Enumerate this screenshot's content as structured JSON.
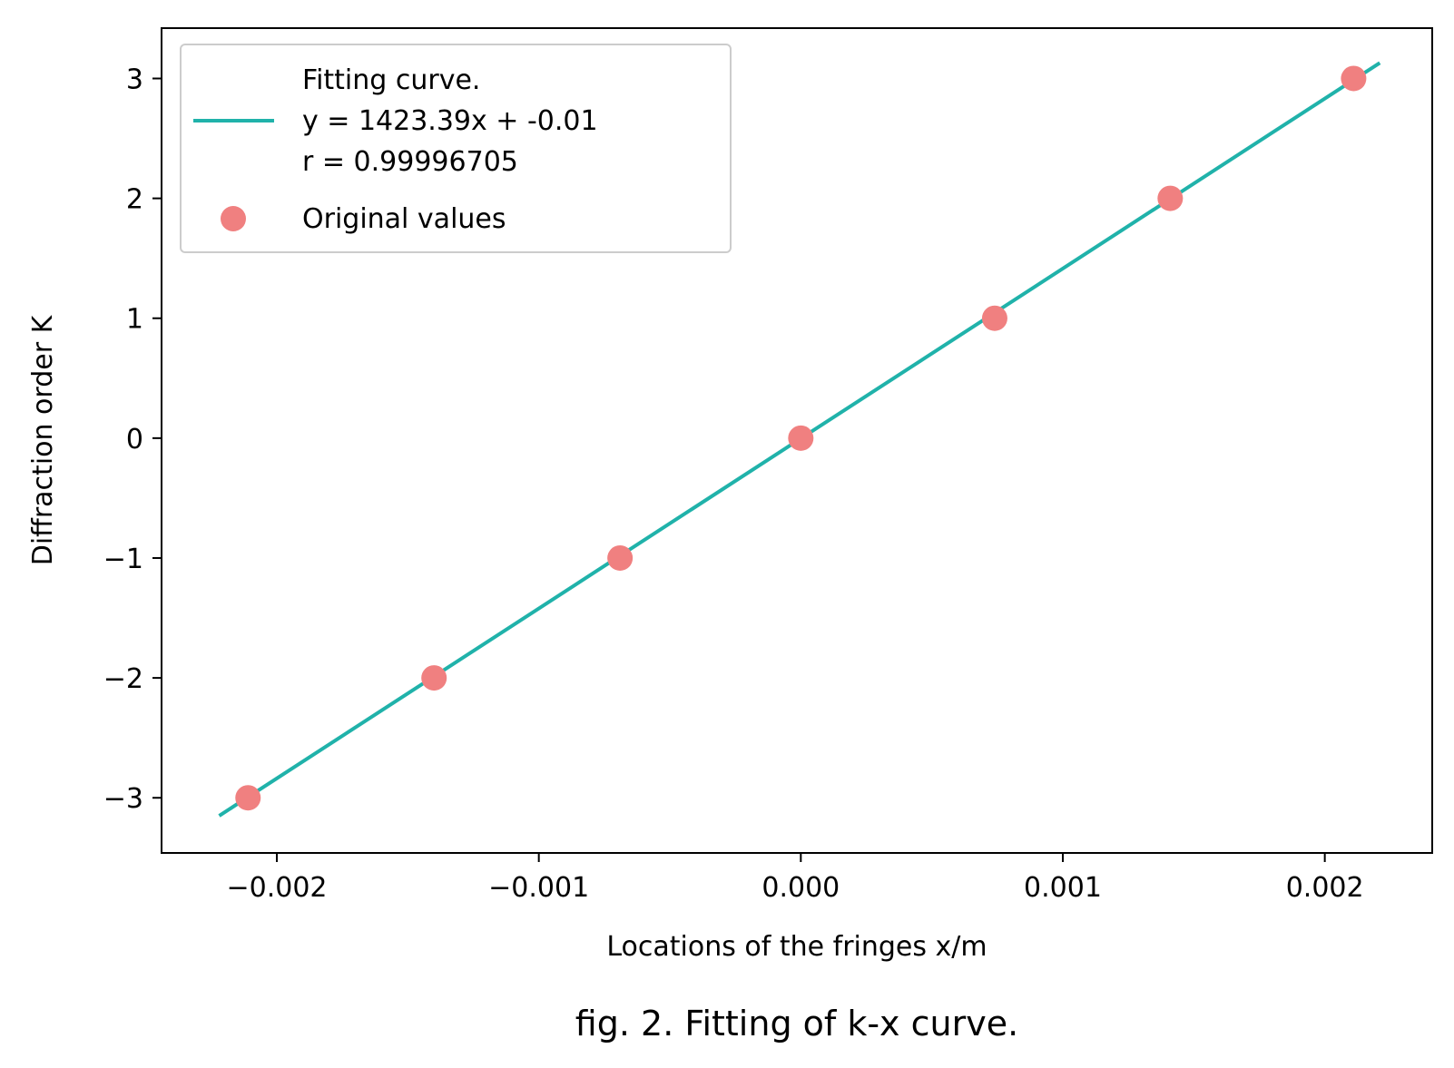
{
  "chart_data": {
    "type": "scatter",
    "title": "",
    "xlabel": "Locations of the fringes  x/m",
    "ylabel": "Diffraction order  K",
    "caption": "fig. 2. Fitting of k-x curve.",
    "xlim": [
      -0.00244,
      0.00241
    ],
    "ylim": [
      -3.46,
      3.42
    ],
    "x_ticks": [
      {
        "value": -0.002,
        "label": "−0.002"
      },
      {
        "value": -0.001,
        "label": "−0.001"
      },
      {
        "value": 0.0,
        "label": "0.000"
      },
      {
        "value": 0.001,
        "label": "0.001"
      },
      {
        "value": 0.002,
        "label": "0.002"
      }
    ],
    "y_ticks": [
      {
        "value": -3,
        "label": "−3"
      },
      {
        "value": -2,
        "label": "−2"
      },
      {
        "value": -1,
        "label": "−1"
      },
      {
        "value": 0,
        "label": "0"
      },
      {
        "value": 1,
        "label": "1"
      },
      {
        "value": 2,
        "label": "2"
      },
      {
        "value": 3,
        "label": "3"
      }
    ],
    "grid": false,
    "legend_position": "top-left",
    "series": [
      {
        "name": "Fitting curve.\ny = 1423.39x + -0.01\nr = 0.99996705",
        "legend_lines": [
          "Fitting curve.",
          "y = 1423.39x + -0.01",
          "r = 0.99996705"
        ],
        "kind": "line",
        "color": "#20b2aa",
        "x": [
          -0.00222,
          0.00221
        ],
        "y": [
          -3.15,
          3.13
        ]
      },
      {
        "name": "Original values",
        "legend_lines": [
          "Original values"
        ],
        "kind": "scatter",
        "color": "#f08080",
        "x": [
          -0.00211,
          -0.0014,
          -0.00069,
          0.0,
          0.00074,
          0.00141,
          0.00211
        ],
        "y": [
          -3,
          -2,
          -1,
          0,
          1,
          2,
          3
        ]
      }
    ]
  }
}
